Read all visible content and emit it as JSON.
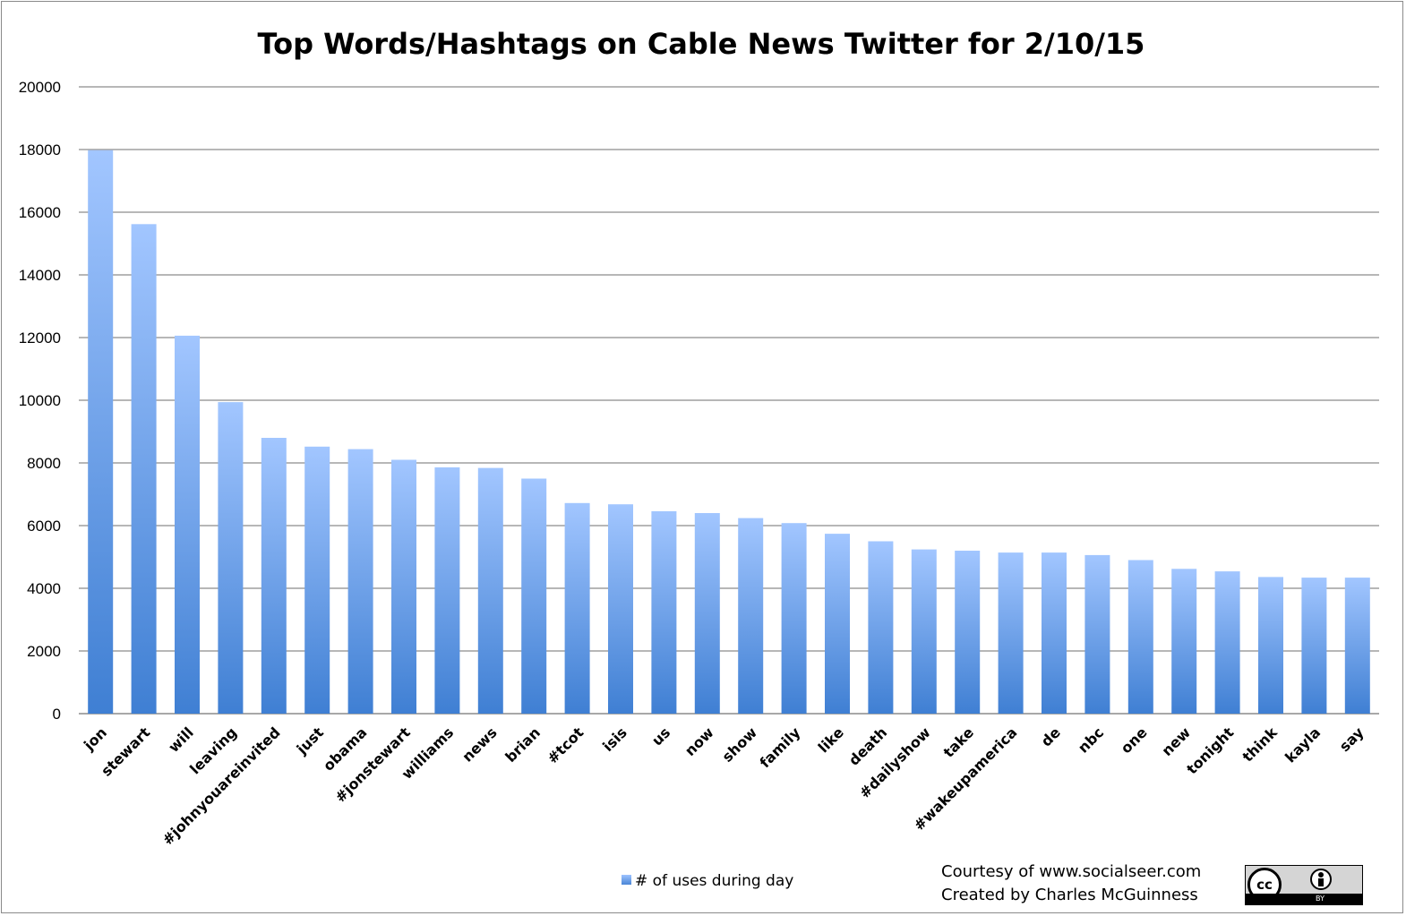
{
  "chart_data": {
    "type": "bar",
    "title": "Top Words/Hashtags on Cable News Twitter for 2/10/15",
    "xlabel": "",
    "ylabel": "",
    "ylim": [
      0,
      20000
    ],
    "yticks": [
      0,
      2000,
      4000,
      6000,
      8000,
      10000,
      12000,
      14000,
      16000,
      18000,
      20000
    ],
    "grid": true,
    "legend_position": "bottom",
    "categories": [
      "jon",
      "stewart",
      "will",
      "leaving",
      "#johnyouareinvited",
      "just",
      "obama",
      "#jonstewart",
      "williams",
      "news",
      "brian",
      "#tcot",
      "isis",
      "us",
      "now",
      "show",
      "family",
      "like",
      "death",
      "#dailyshow",
      "take",
      "#wakeupamerica",
      "de",
      "nbc",
      "one",
      "new",
      "tonight",
      "think",
      "kayla",
      "say"
    ],
    "series": [
      {
        "name": "# of uses during day",
        "values": [
          17980,
          15620,
          12060,
          9940,
          8800,
          8520,
          8440,
          8100,
          7860,
          7840,
          7500,
          6720,
          6680,
          6460,
          6400,
          6240,
          6080,
          5740,
          5500,
          5240,
          5200,
          5140,
          5140,
          5060,
          4900,
          4620,
          4540,
          4360,
          4340,
          4340
        ]
      }
    ],
    "colors": {
      "bar_top": "#a2c6ff",
      "bar_bottom": "#3f7fd3",
      "grid": "#8c8c8c"
    }
  },
  "footer": {
    "courtesy": "Courtesy of www.socialseer.com",
    "created_by": "Created by Charles McGuinness"
  },
  "license_badge": {
    "icon": "creative-commons-by-icon",
    "cc_text": "cc",
    "by_text": "BY"
  }
}
